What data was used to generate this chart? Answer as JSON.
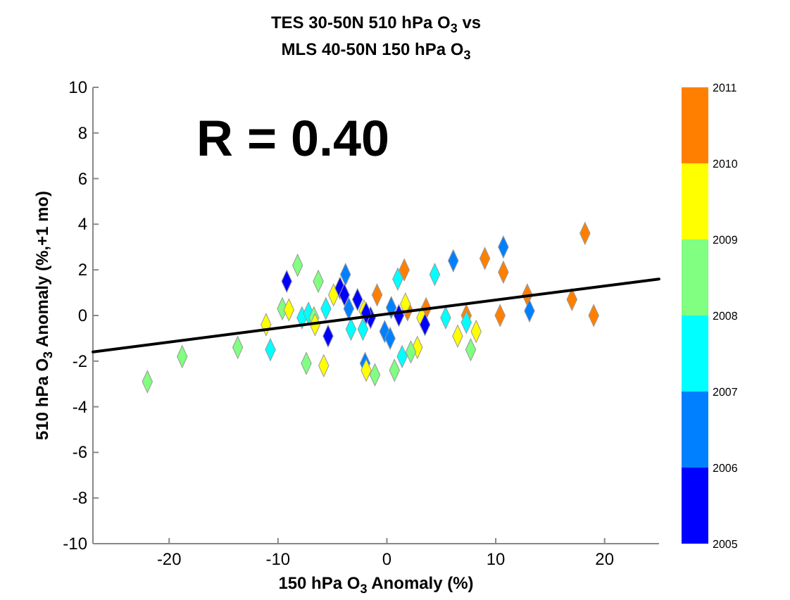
{
  "chart_data": {
    "type": "scatter",
    "title": "TES 30-50N 510 hPa O$_{3}$ vs\nMLS 40-50N 150 hPa O$_{3}$",
    "xlabel": "150 hPa O$_{3}$ Anomaly (%)",
    "ylabel": "510 hPa O$_{3}$ Anomaly (%,+1 mo)",
    "annotations": [
      "R = 0.40"
    ],
    "xlim": [
      -27,
      25
    ],
    "ylim": [
      -10,
      10
    ],
    "xticks": [
      -20,
      -10,
      0,
      10,
      20
    ],
    "yticks": [
      -10,
      -8,
      -6,
      -4,
      -2,
      0,
      2,
      4,
      6,
      8,
      10
    ],
    "clim": [
      2005,
      2011
    ],
    "cticks": [
      2005,
      2006,
      2007,
      2008,
      2009,
      2010,
      2011
    ],
    "grid": false,
    "series": [
      {
        "marker": "diamond",
        "x": [
          -22.0,
          -18.8,
          -13.7,
          -10.7,
          -11.1,
          -8.2,
          -9.2,
          -6.3,
          -9.6,
          -9.0,
          -7.8,
          -7.2,
          -6.7,
          -6.6,
          -5.6,
          -5.4,
          -7.4,
          -5.8,
          -4.9,
          -4.3,
          -3.8,
          -3.9,
          -2.7,
          -3.5,
          -3.3,
          -2.2,
          -2.1,
          -1.5,
          -0.9,
          -2.0,
          -1.9,
          -1.1,
          18.2,
          10.7,
          6.1,
          9.0,
          10.7,
          4.4,
          1.6,
          1.0,
          12.9,
          17.0,
          19.0,
          13.1,
          10.4,
          7.3,
          5.4,
          7.3,
          3.6,
          1.9,
          1.7,
          3.2,
          3.5,
          0.4,
          1.1,
          -0.2,
          0.3,
          6.5,
          8.2,
          7.7,
          2.8,
          2.2,
          1.4,
          0.7,
          -1.9
        ],
        "values": [
          -2.9,
          -1.8,
          -1.4,
          -1.5,
          -0.4,
          2.2,
          1.5,
          1.5,
          0.3,
          0.25,
          -0.1,
          0.1,
          -0.1,
          -0.4,
          0.3,
          -0.9,
          -2.1,
          -2.2,
          0.9,
          1.2,
          1.8,
          0.9,
          0.7,
          0.3,
          -0.6,
          -0.6,
          0.2,
          -0.1,
          0.9,
          -2.1,
          -2.4,
          -2.6,
          3.6,
          3.0,
          2.4,
          2.5,
          1.9,
          1.8,
          2.0,
          1.6,
          0.9,
          0.7,
          0.0,
          0.2,
          0.0,
          0.0,
          -0.1,
          -0.3,
          0.3,
          0.25,
          0.5,
          -0.1,
          -0.4,
          0.35,
          0.0,
          -0.7,
          -1.0,
          -0.9,
          -0.7,
          -1.5,
          -1.4,
          -1.6,
          -1.8,
          -2.4,
          0.1
        ],
        "colors": [
          "#80ff80",
          "#80ff80",
          "#80ff80",
          "#00ffff",
          "#ffff00",
          "#80ff80",
          "#0000ff",
          "#80ff80",
          "#80ff80",
          "#ffff00",
          "#00ffff",
          "#00ffff",
          "#80ff80",
          "#ffff00",
          "#00ffff",
          "#0000ff",
          "#80ff80",
          "#ffff00",
          "#ffff00",
          "#0000ff",
          "#0080ff",
          "#0000ff",
          "#0000ff",
          "#0080ff",
          "#00ffff",
          "#00ffff",
          "#ffff00",
          "#0000ff",
          "#ff8000",
          "#0080ff",
          "#ffff00",
          "#80ff80",
          "#ff8000",
          "#0080ff",
          "#0080ff",
          "#ff8000",
          "#ff8000",
          "#00ffff",
          "#ff8000",
          "#00ffff",
          "#ff8000",
          "#ff8000",
          "#ff8000",
          "#0080ff",
          "#ff8000",
          "#ff8000",
          "#00ffff",
          "#00ffff",
          "#ff8000",
          "#ff8000",
          "#ffff00",
          "#ffff00",
          "#0000ff",
          "#0080ff",
          "#0000ff",
          "#0080ff",
          "#0080ff",
          "#ffff00",
          "#ffff00",
          "#80ff80",
          "#ffff00",
          "#80ff80",
          "#00ffff",
          "#80ff80",
          "#0000ff"
        ]
      },
      {
        "type": "line",
        "marker": "none",
        "color": "#000000",
        "x": [
          -27,
          25
        ],
        "values": [
          -1.6,
          1.6
        ]
      }
    ]
  }
}
